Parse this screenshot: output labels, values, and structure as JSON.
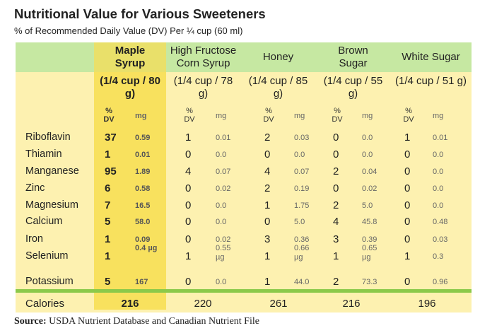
{
  "title": "Nutritional Value for Various Sweeteners",
  "subtitle": "% of Recommended Daily Value (DV) Per ¼  cup (60 ml)",
  "colors": {
    "header_band": "#c6e8a2",
    "body": "#fdf1b0",
    "maple_highlight": "#f8e15e",
    "divider": "#8bc94a"
  },
  "columns": [
    {
      "name": "Maple Syrup",
      "serving": "(1/4 cup / 80 g)"
    },
    {
      "name": "High Fructose Corn Syrup",
      "serving": "(1/4 cup / 78 g)"
    },
    {
      "name": "Honey",
      "serving": "(1/4 cup / 85 g)"
    },
    {
      "name": "Brown Sugar",
      "serving": "(1/4 cup / 55 g)"
    },
    {
      "name": "White Sugar",
      "serving": "(1/4 cup / 51 g)"
    }
  ],
  "units": {
    "pct": "% DV",
    "mg": "mg"
  },
  "rows": [
    {
      "nutrient": "Riboflavin",
      "values": [
        [
          "37",
          "0.59"
        ],
        [
          "1",
          "0.01"
        ],
        [
          "2",
          "0.03"
        ],
        [
          "0",
          "0.0"
        ],
        [
          "1",
          "0.01"
        ]
      ]
    },
    {
      "nutrient": "Thiamin",
      "values": [
        [
          "1",
          "0.01"
        ],
        [
          "0",
          "0.0"
        ],
        [
          "0",
          "0.0"
        ],
        [
          "0",
          "0.0"
        ],
        [
          "0",
          "0.0"
        ]
      ]
    },
    {
      "nutrient": "Manganese",
      "values": [
        [
          "95",
          "1.89"
        ],
        [
          "4",
          "0.07"
        ],
        [
          "4",
          "0.07"
        ],
        [
          "2",
          "0.04"
        ],
        [
          "0",
          "0.0"
        ]
      ]
    },
    {
      "nutrient": "Zinc",
      "values": [
        [
          "6",
          "0.58"
        ],
        [
          "0",
          "0.02"
        ],
        [
          "2",
          "0.19"
        ],
        [
          "0",
          "0.02"
        ],
        [
          "0",
          "0.0"
        ]
      ]
    },
    {
      "nutrient": "Magnesium",
      "values": [
        [
          "7",
          "16.5"
        ],
        [
          "0",
          "0.0"
        ],
        [
          "1",
          "1.75"
        ],
        [
          "2",
          "5.0"
        ],
        [
          "0",
          "0.0"
        ]
      ]
    },
    {
      "nutrient": "Calcium",
      "values": [
        [
          "5",
          "58.0"
        ],
        [
          "0",
          "0.0"
        ],
        [
          "0",
          "5.0"
        ],
        [
          "4",
          "45.8"
        ],
        [
          "0",
          "0.48"
        ]
      ]
    },
    {
      "nutrient": "Iron",
      "values": [
        [
          "1",
          "0.09"
        ],
        [
          "0",
          "0.02"
        ],
        [
          "3",
          "0.36"
        ],
        [
          "3",
          "0.39"
        ],
        [
          "0",
          "0.03"
        ]
      ]
    },
    {
      "nutrient": "Selenium",
      "values": [
        [
          "1",
          "0.4 µg"
        ],
        [
          "1",
          "0.55 µg"
        ],
        [
          "1",
          "0.66 µg"
        ],
        [
          "1",
          "0.65 µg"
        ],
        [
          "1",
          "0.3"
        ]
      ]
    },
    {
      "nutrient": "Potassium",
      "values": [
        [
          "5",
          "167"
        ],
        [
          "0",
          "0.0"
        ],
        [
          "1",
          "44.0"
        ],
        [
          "2",
          "73.3"
        ],
        [
          "0",
          "0.96"
        ]
      ]
    }
  ],
  "calories": {
    "label": "Calories",
    "values": [
      "216",
      "220",
      "261",
      "216",
      "196"
    ]
  },
  "source": {
    "label": "Source:",
    "text": "USDA Nutrient Database and Canadian Nutrient File"
  }
}
